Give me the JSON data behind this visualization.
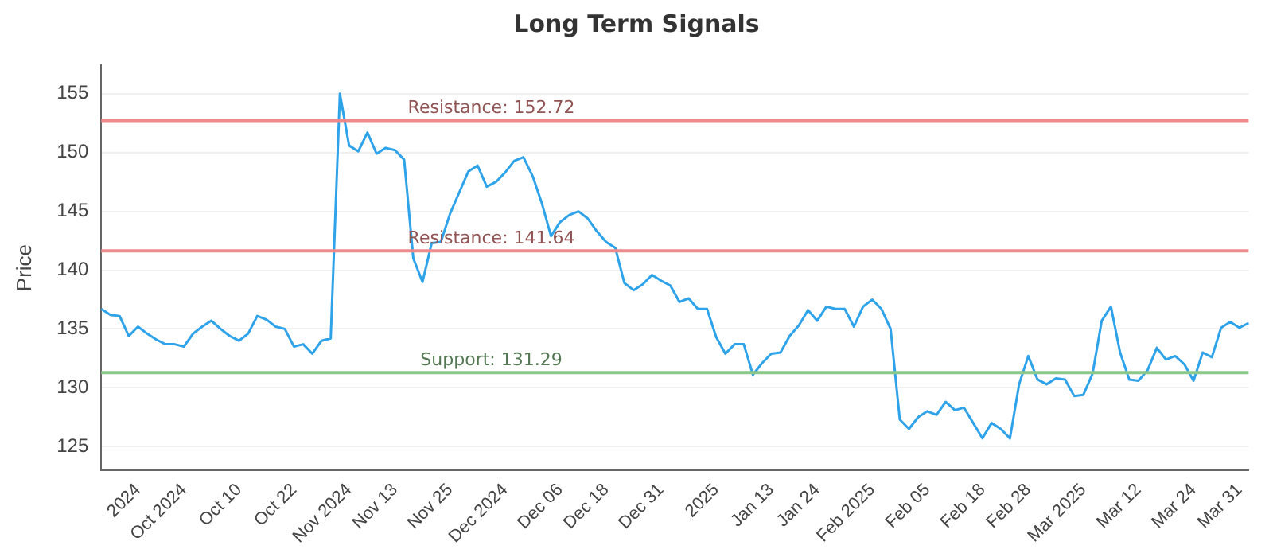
{
  "chart_data": {
    "type": "line",
    "title": "Long Term Signals",
    "ylabel": "Price",
    "categories": [
      null,
      null,
      null,
      null,
      "2024",
      null,
      null,
      null,
      null,
      "Oct 2024",
      null,
      null,
      null,
      null,
      null,
      "Oct 10",
      null,
      null,
      null,
      null,
      null,
      "Oct 22",
      null,
      null,
      null,
      null,
      null,
      "Nov 2024",
      null,
      null,
      null,
      null,
      "Nov 13",
      null,
      null,
      null,
      null,
      null,
      "Nov 25",
      null,
      null,
      null,
      null,
      null,
      "Dec 2024",
      null,
      null,
      null,
      null,
      null,
      "Dec 06",
      null,
      null,
      null,
      null,
      "Dec 18",
      null,
      null,
      null,
      null,
      null,
      "Dec 31",
      null,
      null,
      null,
      null,
      null,
      "2025",
      null,
      null,
      null,
      null,
      null,
      "Jan 13",
      null,
      null,
      null,
      null,
      "Jan 24",
      null,
      null,
      null,
      null,
      null,
      "Feb 2025",
      null,
      null,
      null,
      null,
      null,
      "Feb 05",
      null,
      null,
      null,
      null,
      null,
      "Feb 18",
      null,
      null,
      null,
      null,
      "Feb 28",
      null,
      null,
      null,
      null,
      null,
      "Mar 2025",
      null,
      null,
      null,
      null,
      null,
      "Mar 12",
      null,
      null,
      null,
      null,
      null,
      "Mar 24",
      null,
      null,
      null,
      null,
      "Mar 31",
      null
    ],
    "series": [
      {
        "color": "#2ea3ea",
        "values": [
          136.7,
          136.2,
          136.1,
          134.4,
          135.2,
          134.6,
          134.1,
          133.7,
          133.7,
          133.5,
          134.6,
          135.2,
          135.7,
          135.0,
          134.4,
          134.0,
          134.6,
          136.1,
          135.8,
          135.2,
          135.0,
          133.5,
          133.7,
          132.9,
          134.0,
          134.2,
          155.0,
          150.6,
          150.1,
          151.7,
          149.9,
          150.4,
          150.2,
          149.4,
          141.0,
          139.0,
          142.3,
          142.4,
          144.8,
          146.6,
          148.4,
          148.9,
          147.1,
          147.5,
          148.3,
          149.3,
          149.6,
          148.0,
          145.7,
          142.9,
          144.1,
          144.7,
          145.0,
          144.4,
          143.3,
          142.4,
          141.9,
          138.9,
          138.3,
          138.8,
          139.6,
          139.1,
          138.7,
          137.3,
          137.6,
          136.7,
          136.7,
          134.3,
          132.9,
          133.7,
          133.7,
          131.1,
          132.1,
          132.9,
          133.0,
          134.4,
          135.3,
          136.6,
          135.7,
          136.9,
          136.7,
          136.7,
          135.2,
          136.9,
          137.5,
          136.7,
          135.0,
          127.3,
          126.5,
          127.5,
          128.0,
          127.7,
          128.8,
          128.1,
          128.3,
          127.0,
          125.7,
          127.0,
          126.5,
          125.7,
          130.3,
          132.7,
          130.7,
          130.3,
          130.8,
          130.7,
          129.3,
          129.4,
          131.2,
          135.7,
          136.9,
          133.0,
          130.7,
          130.6,
          131.5,
          133.4,
          132.4,
          132.7,
          132.0,
          130.6,
          133.0,
          132.6,
          135.1,
          135.6,
          135.1,
          135.5
        ]
      }
    ],
    "ylim": [
      123,
      157.4
    ],
    "yticks": [
      125,
      130,
      135,
      140,
      145,
      150,
      155
    ],
    "grid": "y",
    "marker": "none",
    "line_style": "solid",
    "ref_lines": [
      {
        "axis": "y",
        "value": 152.72,
        "label": "Resistance: 152.72",
        "color": "#f08a8a"
      },
      {
        "axis": "y",
        "value": 141.64,
        "label": "Resistance: 141.64",
        "color": "#f08a8a"
      },
      {
        "axis": "y",
        "value": 131.29,
        "label": "Support: 131.29",
        "color": "#8cc78c"
      }
    ]
  }
}
